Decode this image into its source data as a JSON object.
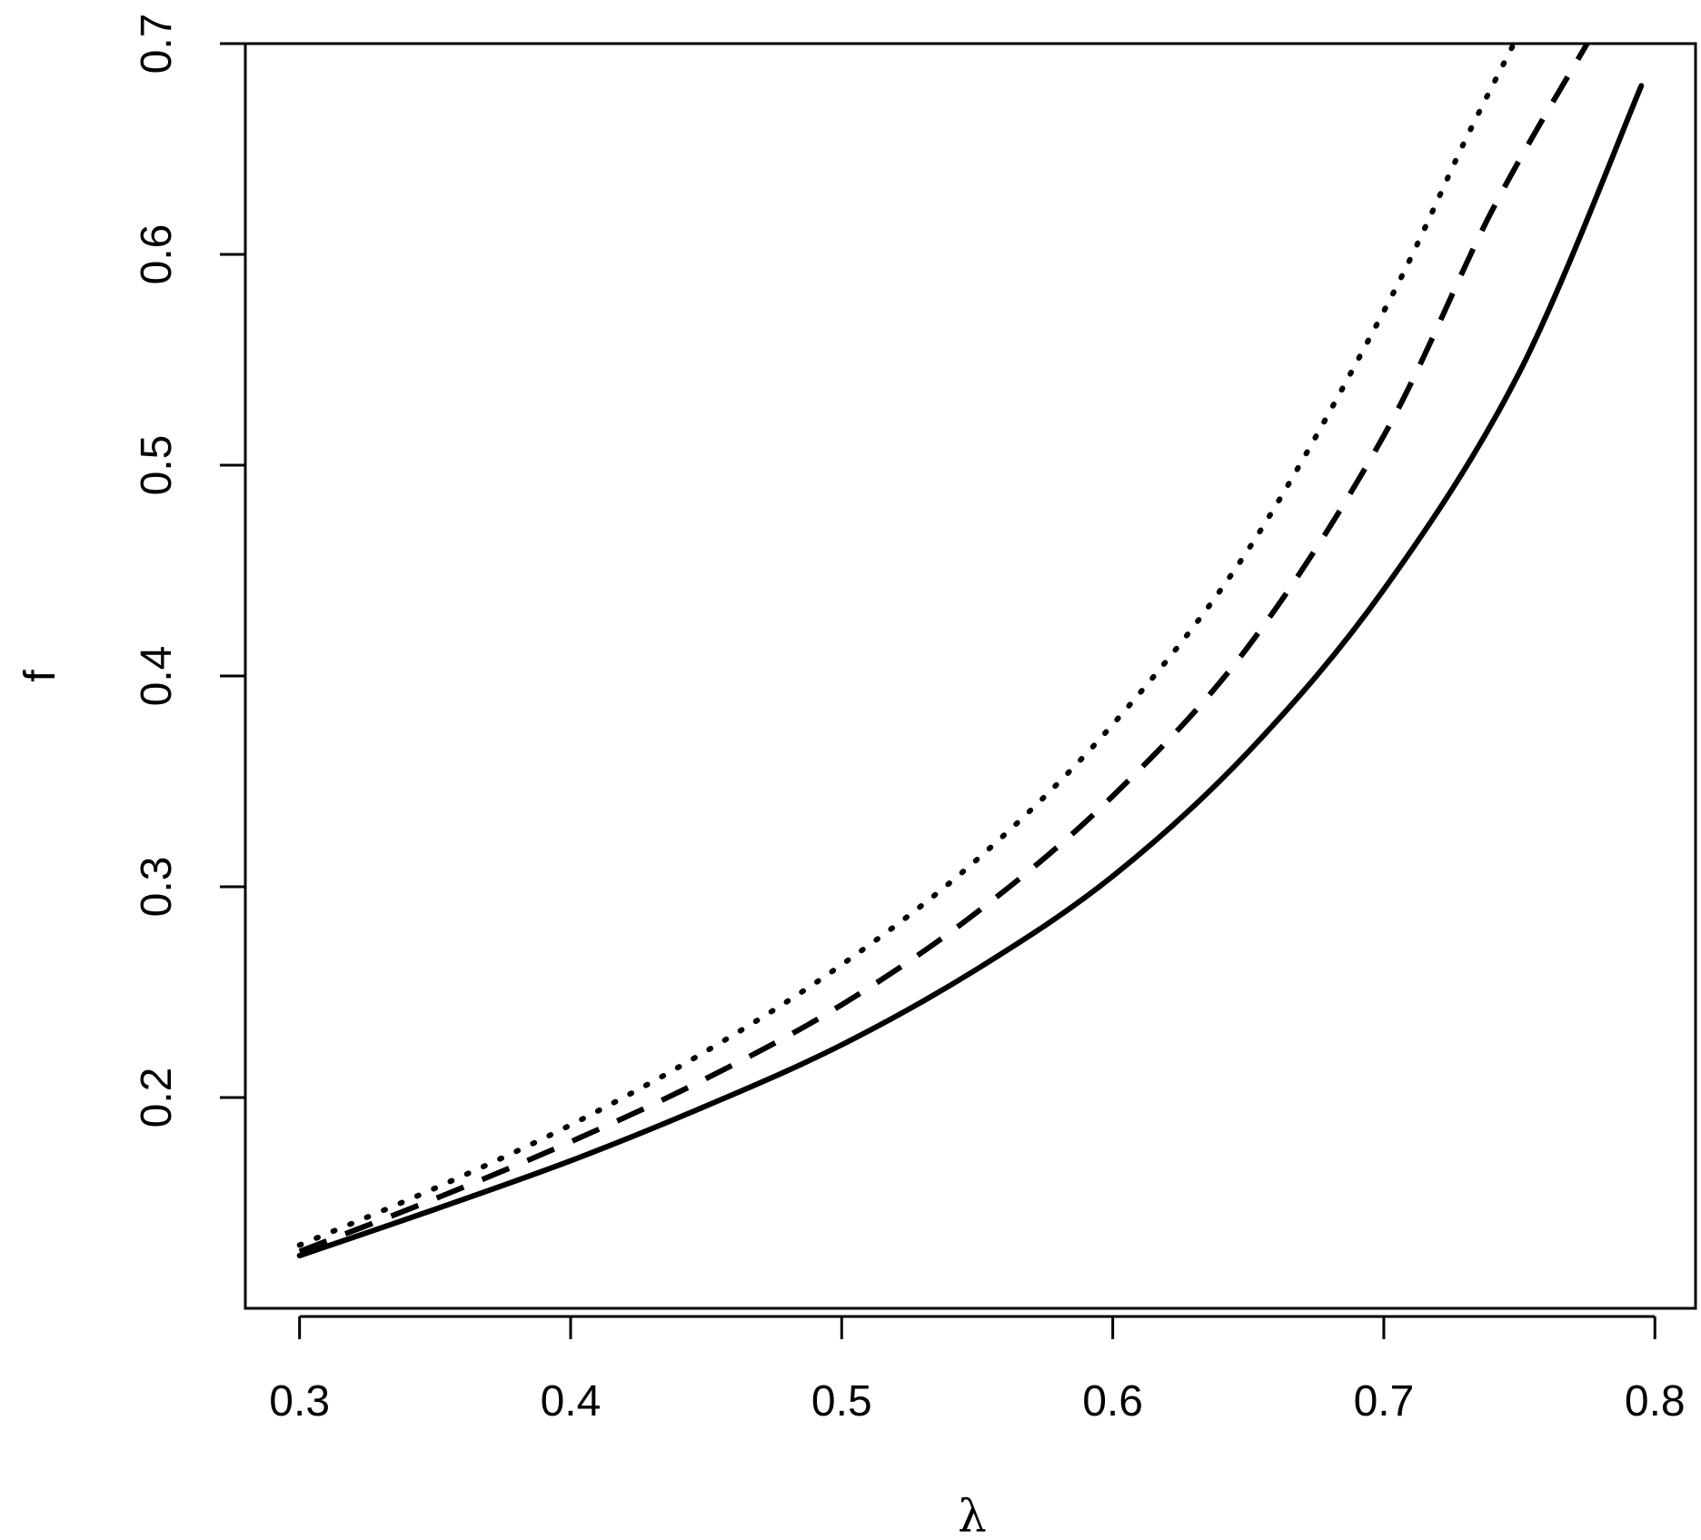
{
  "chart_data": {
    "type": "line",
    "title": "",
    "xlabel": "λ",
    "ylabel": "f",
    "xlim": [
      0.28,
      0.815
    ],
    "ylim": [
      0.1,
      0.7
    ],
    "x_ticks": [
      "0.3",
      "0.4",
      "0.5",
      "0.6",
      "0.7",
      "0.8"
    ],
    "y_ticks": [
      "0.2",
      "0.3",
      "0.4",
      "0.5",
      "0.6",
      "0.7"
    ],
    "grid": false,
    "legend": "none",
    "series": [
      {
        "style": "solid",
        "color": "#000000",
        "x": [
          0.3,
          0.35,
          0.4,
          0.45,
          0.5,
          0.55,
          0.6,
          0.65,
          0.7,
          0.75,
          0.795
        ],
        "y": [
          0.125,
          0.147,
          0.17,
          0.196,
          0.225,
          0.261,
          0.305,
          0.364,
          0.441,
          0.544,
          0.68
        ]
      },
      {
        "style": "dashed",
        "color": "#000000",
        "x": [
          0.3,
          0.35,
          0.4,
          0.45,
          0.5,
          0.55,
          0.6,
          0.65,
          0.7,
          0.74,
          0.775
        ],
        "y": [
          0.127,
          0.152,
          0.179,
          0.209,
          0.244,
          0.288,
          0.343,
          0.414,
          0.514,
          0.621,
          0.7
        ]
      },
      {
        "style": "dotted",
        "color": "#000000",
        "x": [
          0.3,
          0.35,
          0.4,
          0.45,
          0.5,
          0.55,
          0.6,
          0.65,
          0.7,
          0.73,
          0.748
        ],
        "y": [
          0.13,
          0.157,
          0.187,
          0.222,
          0.263,
          0.313,
          0.377,
          0.46,
          0.573,
          0.654,
          0.7
        ]
      }
    ]
  }
}
